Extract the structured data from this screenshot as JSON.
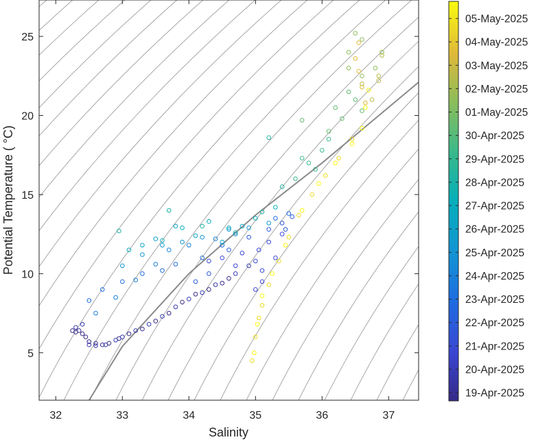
{
  "chart_data": {
    "type": "scatter",
    "title": "",
    "xlabel": "Salinity",
    "ylabel": "Potential Temperature ( °C)",
    "xlim": [
      31.75,
      37.45
    ],
    "ylim": [
      2.0,
      27.3
    ],
    "xticks": [
      32,
      33,
      34,
      35,
      36,
      37
    ],
    "yticks": [
      5,
      10,
      15,
      20,
      25
    ],
    "background_lines": "potential density contours (grey)",
    "emphasized_contour_points": [
      [
        32.5,
        2.0
      ],
      [
        33.0,
        5.4
      ],
      [
        34.0,
        10.0
      ],
      [
        35.0,
        13.7
      ],
      [
        36.0,
        17.0
      ],
      [
        37.45,
        22.1
      ]
    ],
    "marker": "open circle",
    "colormap": "parula",
    "colorbar": {
      "labels": [
        "19-Apr-2025",
        "20-Apr-2025",
        "21-Apr-2025",
        "22-Apr-2025",
        "23-Apr-2025",
        "24-Apr-2025",
        "25-Apr-2025",
        "26-Apr-2025",
        "27-Apr-2025",
        "28-Apr-2025",
        "29-Apr-2025",
        "30-Apr-2025",
        "01-May-2025",
        "02-May-2025",
        "03-May-2025",
        "04-May-2025",
        "05-May-2025"
      ],
      "placement": "right"
    },
    "series": [
      {
        "date_index": 0,
        "points": [
          [
            32.25,
            6.4
          ],
          [
            32.3,
            6.3
          ],
          [
            32.35,
            6.4
          ],
          [
            32.4,
            6.2
          ],
          [
            32.45,
            6.0
          ],
          [
            32.5,
            5.7
          ],
          [
            32.6,
            5.6
          ],
          [
            32.7,
            5.5
          ],
          [
            32.8,
            5.6
          ],
          [
            32.95,
            5.9
          ],
          [
            33.1,
            6.2
          ],
          [
            33.3,
            6.5
          ],
          [
            33.5,
            7.0
          ],
          [
            33.7,
            7.5
          ],
          [
            33.9,
            8.2
          ],
          [
            34.1,
            8.7
          ],
          [
            34.3,
            9.0
          ],
          [
            34.5,
            9.4
          ],
          [
            34.6,
            9.7
          ]
        ]
      },
      {
        "date_index": 1,
        "points": [
          [
            32.3,
            6.6
          ],
          [
            32.4,
            6.8
          ],
          [
            32.5,
            5.5
          ],
          [
            32.6,
            5.45
          ],
          [
            32.75,
            5.5
          ],
          [
            32.9,
            5.8
          ],
          [
            33.0,
            6.0
          ],
          [
            33.2,
            6.4
          ],
          [
            33.4,
            6.8
          ],
          [
            33.6,
            7.3
          ],
          [
            33.8,
            7.9
          ],
          [
            34.0,
            8.4
          ],
          [
            34.2,
            8.8
          ],
          [
            34.4,
            9.3
          ],
          [
            34.7,
            10.0
          ],
          [
            34.9,
            10.5
          ]
        ]
      },
      {
        "date_index": 2,
        "points": [
          [
            34.3,
            10.8
          ],
          [
            34.5,
            11.0
          ],
          [
            34.7,
            10.5
          ],
          [
            34.8,
            11.3
          ],
          [
            35.0,
            10.8
          ],
          [
            35.05,
            11.5
          ],
          [
            35.1,
            10.2
          ],
          [
            35.2,
            12.0
          ],
          [
            35.3,
            11.0
          ],
          [
            35.4,
            12.5
          ],
          [
            35.1,
            9.5
          ],
          [
            35.0,
            9.0
          ]
        ]
      },
      {
        "date_index": 3,
        "points": [
          [
            34.1,
            9.5
          ],
          [
            34.3,
            10.0
          ],
          [
            34.6,
            11.5
          ],
          [
            34.9,
            12.3
          ],
          [
            35.2,
            12.8
          ],
          [
            35.4,
            13.2
          ],
          [
            35.55,
            13.6
          ],
          [
            35.45,
            12.8
          ]
        ]
      },
      {
        "date_index": 4,
        "points": [
          [
            32.5,
            8.3
          ],
          [
            32.7,
            9.0
          ],
          [
            33.0,
            9.5
          ],
          [
            33.3,
            10.0
          ],
          [
            33.6,
            10.2
          ],
          [
            33.8,
            10.6
          ],
          [
            34.2,
            11.0
          ],
          [
            34.5,
            11.8
          ],
          [
            35.3,
            13.5
          ],
          [
            35.5,
            13.8
          ]
        ]
      },
      {
        "date_index": 5,
        "points": [
          [
            32.6,
            7.5
          ],
          [
            32.9,
            8.5
          ],
          [
            33.2,
            9.6
          ],
          [
            33.5,
            10.6
          ],
          [
            33.7,
            11.5
          ],
          [
            34.0,
            11.8
          ],
          [
            34.4,
            12.2
          ],
          [
            34.7,
            12.5
          ]
        ]
      },
      {
        "date_index": 6,
        "points": [
          [
            33.0,
            10.5
          ],
          [
            33.3,
            11.2
          ],
          [
            33.6,
            11.8
          ],
          [
            33.9,
            12.0
          ],
          [
            34.2,
            12.3
          ],
          [
            34.6,
            12.8
          ],
          [
            34.9,
            12.9
          ],
          [
            35.2,
            13.2
          ]
        ]
      },
      {
        "date_index": 7,
        "points": [
          [
            33.3,
            11.8
          ],
          [
            33.5,
            12.2
          ],
          [
            33.8,
            13.0
          ],
          [
            34.1,
            12.4
          ],
          [
            34.5,
            12.0
          ],
          [
            34.8,
            13.0
          ]
        ]
      },
      {
        "date_index": 8,
        "points": [
          [
            33.1,
            11.5
          ],
          [
            33.6,
            12.1
          ],
          [
            33.9,
            12.9
          ],
          [
            34.3,
            13.3
          ],
          [
            34.6,
            12.9
          ],
          [
            35.0,
            13.5
          ],
          [
            35.3,
            14.2
          ]
        ]
      },
      {
        "date_index": 9,
        "points": [
          [
            32.95,
            12.7
          ],
          [
            33.7,
            14.0
          ],
          [
            34.2,
            13.0
          ],
          [
            34.7,
            12.6
          ],
          [
            35.1,
            13.9
          ],
          [
            35.2,
            18.6
          ],
          [
            35.4,
            15.5
          ]
        ]
      },
      {
        "date_index": 10,
        "points": [
          [
            35.6,
            16.0
          ],
          [
            35.8,
            17.0
          ],
          [
            36.0,
            17.8
          ],
          [
            36.1,
            18.5
          ],
          [
            35.7,
            17.3
          ],
          [
            35.9,
            16.6
          ]
        ]
      },
      {
        "date_index": 11,
        "points": [
          [
            35.7,
            19.7
          ],
          [
            36.1,
            19.0
          ],
          [
            36.2,
            20.5
          ],
          [
            36.3,
            19.8
          ],
          [
            36.4,
            21.5
          ],
          [
            36.5,
            21.0
          ],
          [
            36.6,
            20.3
          ]
        ]
      },
      {
        "date_index": 12,
        "points": [
          [
            36.4,
            24.0
          ],
          [
            36.5,
            25.2
          ],
          [
            36.6,
            24.8
          ],
          [
            36.4,
            23.0
          ],
          [
            36.9,
            24.0
          ],
          [
            36.8,
            23.0
          ],
          [
            36.6,
            22.5
          ]
        ]
      },
      {
        "date_index": 13,
        "points": [
          [
            36.75,
            21.0
          ],
          [
            36.85,
            22.5
          ],
          [
            36.9,
            23.8
          ],
          [
            36.6,
            22.0
          ],
          [
            36.85,
            22.2
          ]
        ]
      },
      {
        "date_index": 14,
        "points": [
          [
            36.5,
            23.6
          ],
          [
            36.55,
            22.8
          ],
          [
            36.6,
            21.8
          ],
          [
            36.65,
            20.8
          ],
          [
            36.55,
            24.6
          ]
        ]
      },
      {
        "date_index": 15,
        "points": [
          [
            34.95,
            4.5
          ],
          [
            35.0,
            6.0
          ],
          [
            35.05,
            7.2
          ],
          [
            35.1,
            8.0
          ],
          [
            35.2,
            9.3
          ],
          [
            35.35,
            10.8
          ],
          [
            35.5,
            12.3
          ],
          [
            35.65,
            13.7
          ],
          [
            35.85,
            15.0
          ],
          [
            36.05,
            16.2
          ],
          [
            36.25,
            17.3
          ],
          [
            36.45,
            18.5
          ]
        ]
      },
      {
        "date_index": 16,
        "points": [
          [
            34.98,
            5.0
          ],
          [
            35.03,
            6.8
          ],
          [
            35.1,
            8.6
          ],
          [
            35.25,
            10.0
          ],
          [
            35.45,
            11.8
          ],
          [
            35.7,
            14.0
          ],
          [
            35.95,
            15.7
          ],
          [
            36.2,
            17.0
          ],
          [
            36.45,
            18.2
          ],
          [
            36.6,
            19.2
          ],
          [
            36.65,
            20.5
          ],
          [
            36.7,
            21.6
          ]
        ]
      }
    ]
  }
}
